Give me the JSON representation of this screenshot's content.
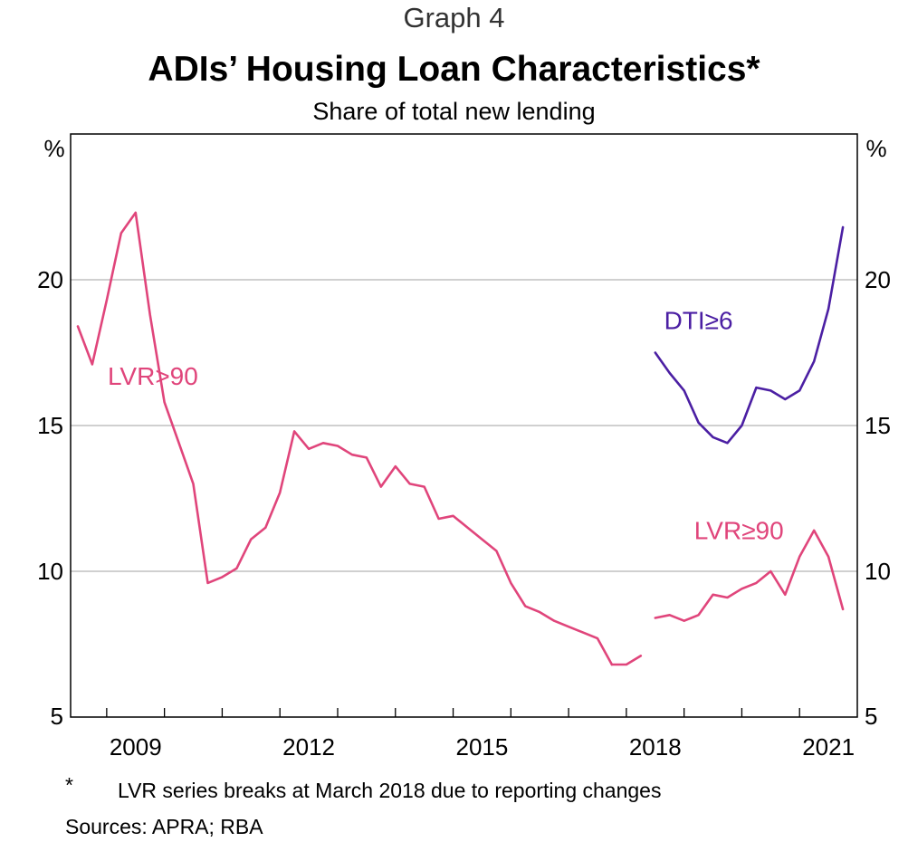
{
  "header": {
    "graph_number": "Graph 4",
    "title": "ADIs’ Housing Loan Characteristics*",
    "subtitle": "Share of total new lending"
  },
  "footer": {
    "footnote_marker": "*",
    "footnote_text": "LVR series breaks at March 2018 due to reporting changes",
    "sources": "Sources: APRA; RBA"
  },
  "colors": {
    "lvr": "#e0457b",
    "dti": "#4b1fa3",
    "grid": "#b3b3b3",
    "axis": "#000000"
  },
  "chart_data": {
    "type": "line",
    "title": "ADIs’ Housing Loan Characteristics*",
    "subtitle": "Share of total new lending",
    "ylabel_left": "%",
    "ylabel_right": "%",
    "ylim": [
      5,
      25
    ],
    "yticks": [
      5,
      10,
      15,
      20
    ],
    "ytick_labels": [
      "5",
      "10",
      "15",
      "20"
    ],
    "xlim": [
      2007.875,
      2021.5
    ],
    "xtick_labels": [
      "2009",
      "2012",
      "2015",
      "2018",
      "2021"
    ],
    "xtick_label_positions": [
      2009,
      2012,
      2015,
      2018,
      2021
    ],
    "year_boundaries": [
      2008.5,
      2009.5,
      2010.5,
      2011.5,
      2012.5,
      2013.5,
      2014.5,
      2015.5,
      2016.5,
      2017.5,
      2018.5,
      2019.5,
      2020.5,
      2021.5
    ],
    "grid": true,
    "series": [
      {
        "name": "LVR>90",
        "label": "LVR>90",
        "color": "#e0457b",
        "label_x": 2009.3,
        "label_y": 16.4,
        "x": [
          2008.0,
          2008.25,
          2008.5,
          2008.75,
          2009.0,
          2009.25,
          2009.5,
          2009.75,
          2010.0,
          2010.25,
          2010.5,
          2010.75,
          2011.0,
          2011.25,
          2011.5,
          2011.75,
          2012.0,
          2012.25,
          2012.5,
          2012.75,
          2013.0,
          2013.25,
          2013.5,
          2013.75,
          2014.0,
          2014.25,
          2014.5,
          2014.75,
          2015.0,
          2015.25,
          2015.5,
          2015.75,
          2016.0,
          2016.25,
          2016.5,
          2016.75,
          2017.0,
          2017.25
        ],
        "y": [
          18.4,
          17.1,
          19.3,
          21.6,
          22.3,
          18.8,
          15.8,
          14.4,
          13.0,
          9.6,
          9.8,
          10.1,
          11.1,
          11.5,
          12.7,
          14.8,
          14.2,
          14.4,
          14.3,
          14.0,
          13.9,
          12.9,
          13.6,
          13.0,
          12.9,
          11.8,
          11.9,
          11.5,
          11.1,
          10.7,
          9.6,
          8.8,
          8.6,
          8.3,
          8.1,
          7.9,
          7.7,
          6.8
        ]
      },
      {
        "name": "LVR>90 (end 2017)",
        "label": "",
        "color": "#e0457b",
        "x": [
          2017.25,
          2017.5,
          2017.75
        ],
        "y": [
          6.8,
          6.8,
          7.1
        ]
      },
      {
        "name": "LVR≥90",
        "label": "LVR≥90",
        "color": "#e0457b",
        "label_x": 2019.45,
        "label_y": 11.1,
        "x": [
          2018.0,
          2018.25,
          2018.5,
          2018.75,
          2019.0,
          2019.25,
          2019.5,
          2019.75,
          2020.0,
          2020.25,
          2020.5,
          2020.75,
          2021.0,
          2021.25
        ],
        "y": [
          8.4,
          8.5,
          8.3,
          8.5,
          9.2,
          9.1,
          9.4,
          9.6,
          10.0,
          9.2,
          10.5,
          11.4,
          10.5,
          8.7
        ]
      },
      {
        "name": "DTI≥6",
        "label": "DTI≥6",
        "color": "#4b1fa3",
        "label_x": 2018.75,
        "label_y": 18.3,
        "x": [
          2018.0,
          2018.25,
          2018.5,
          2018.75,
          2019.0,
          2019.25,
          2019.5,
          2019.75,
          2020.0,
          2020.25,
          2020.5,
          2020.75,
          2021.0,
          2021.25
        ],
        "y": [
          17.5,
          16.8,
          16.2,
          15.1,
          14.6,
          14.4,
          15.0,
          16.3,
          16.2,
          15.9,
          16.2,
          17.2,
          19.0,
          21.8
        ]
      }
    ]
  }
}
